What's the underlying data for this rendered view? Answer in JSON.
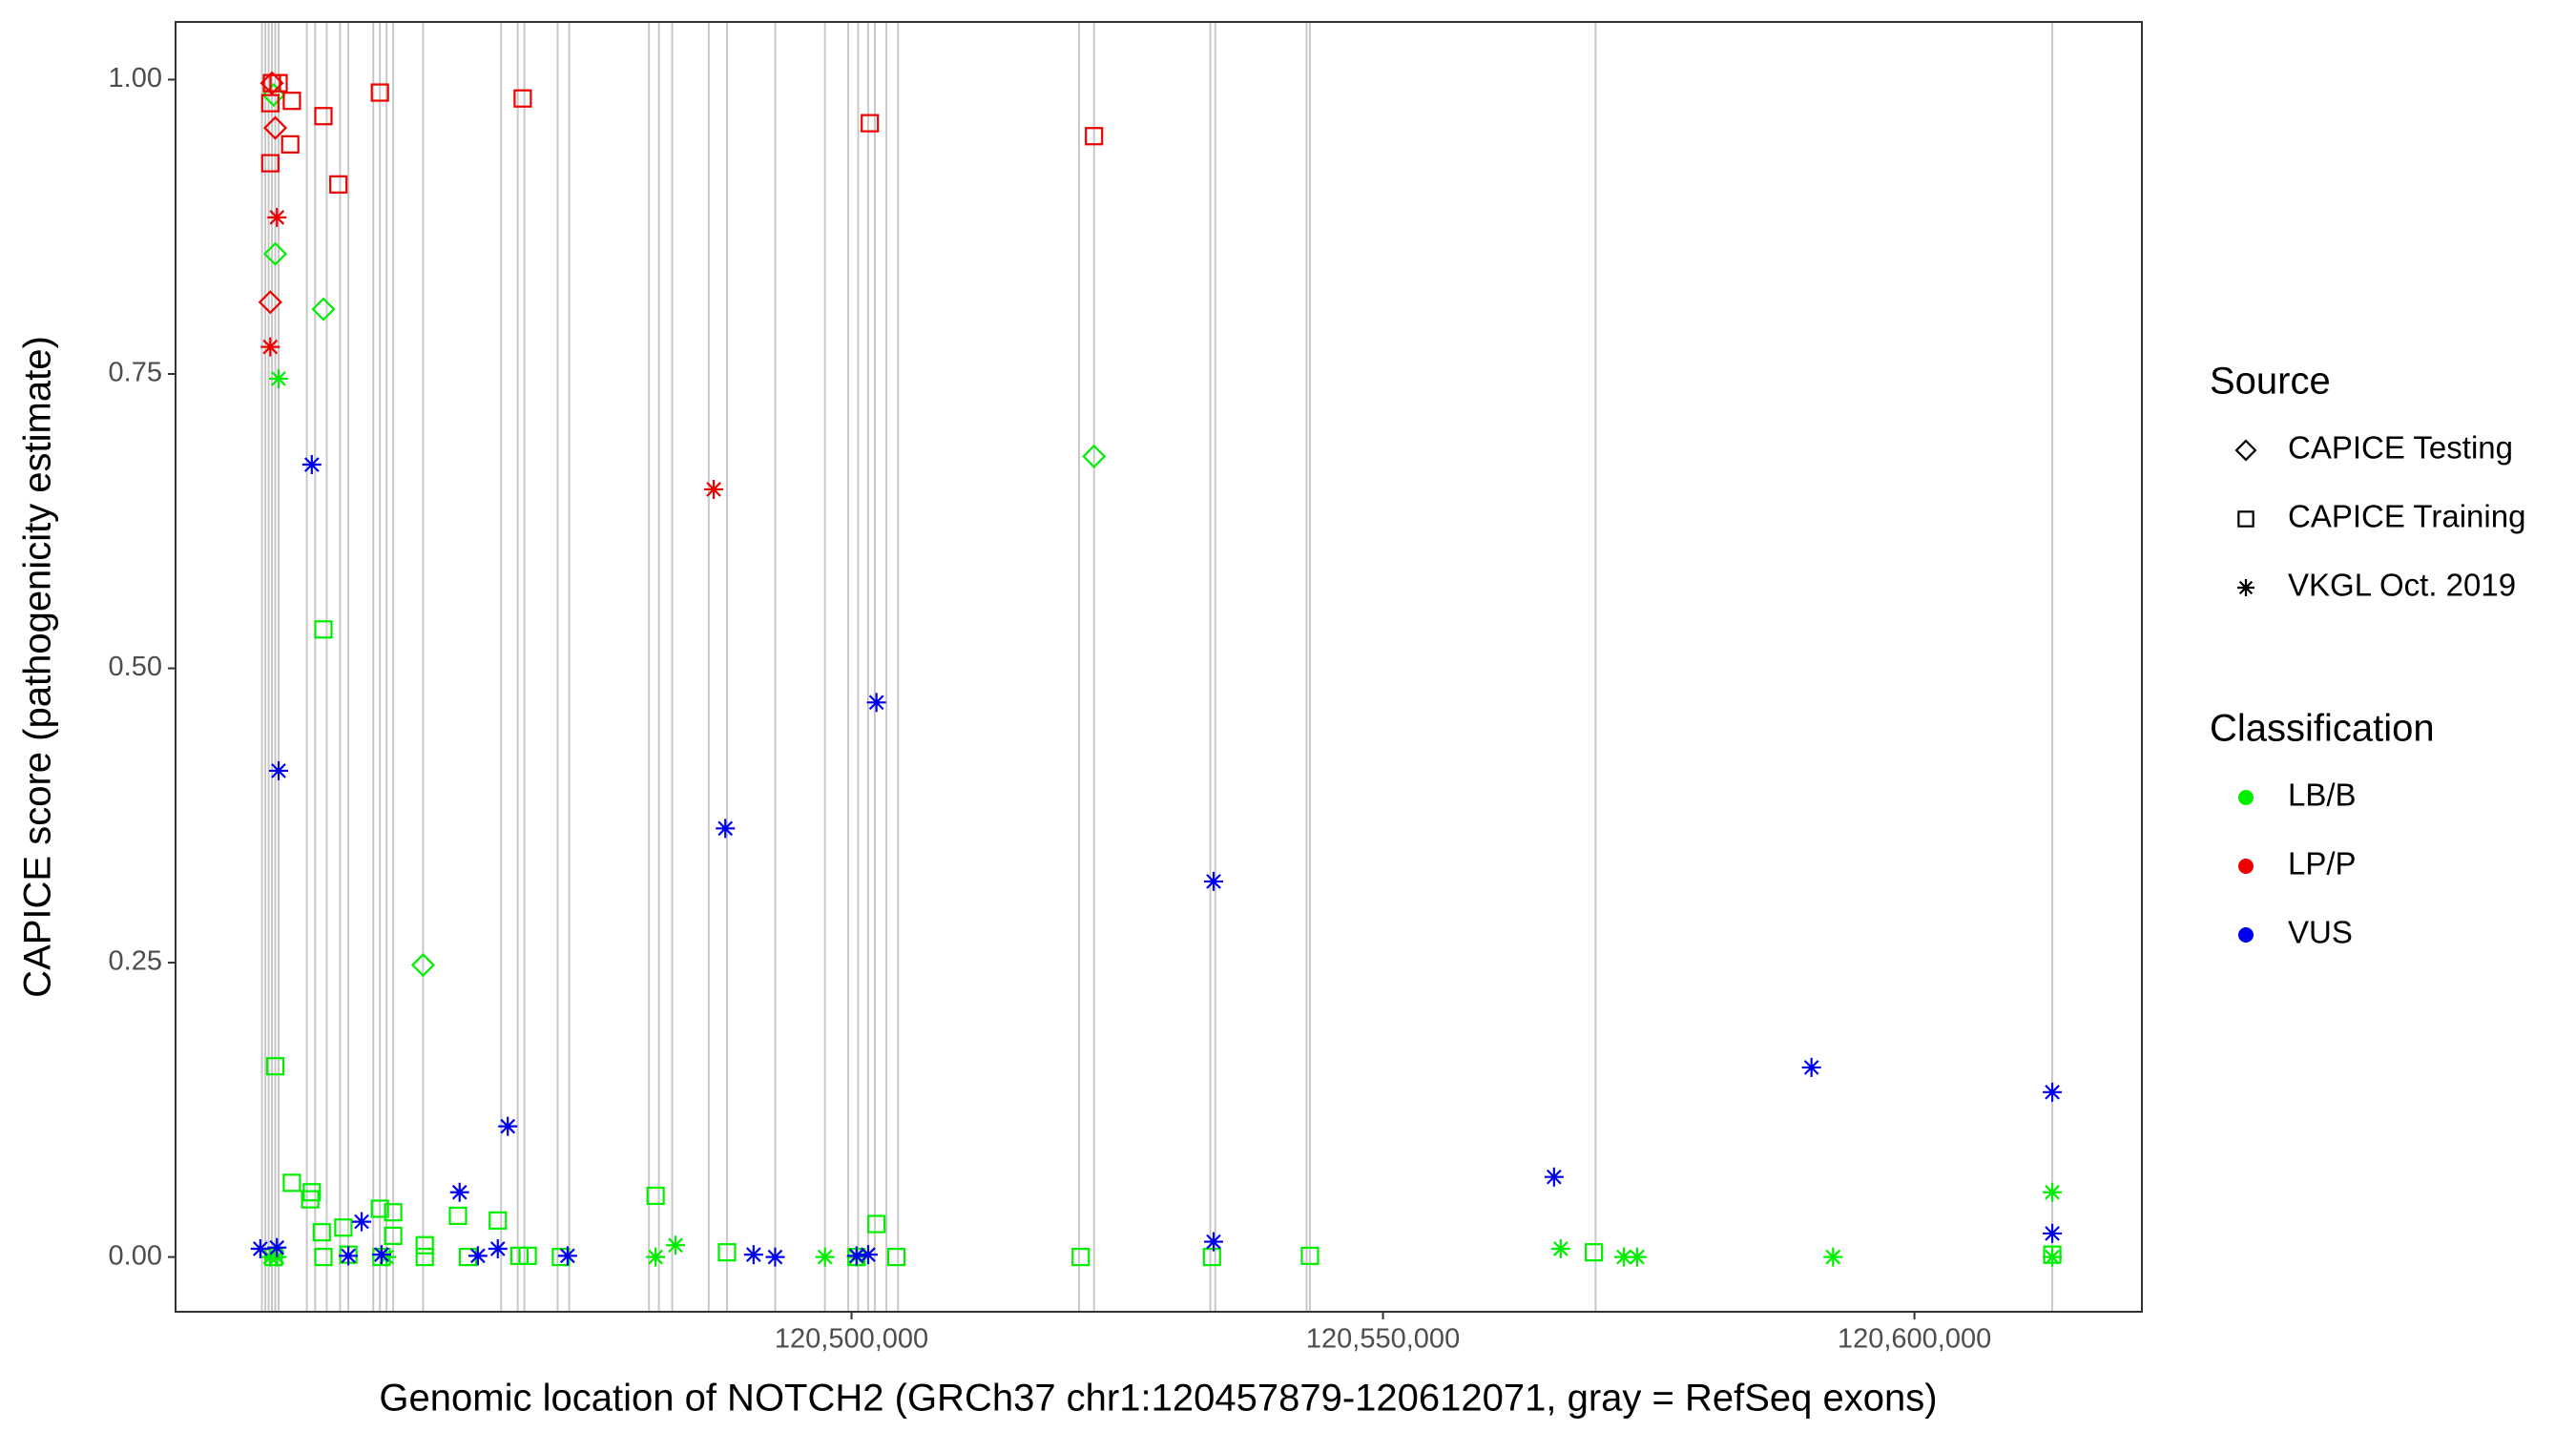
{
  "chart_data": {
    "type": "scatter",
    "x_label": "Genomic location of NOTCH2 (GRCh37 chr1:120457879-120612071, gray = RefSeq exons)",
    "y_label": "CAPICE score (pathogenicity estimate)",
    "xlim": [
      120436400,
      120621400
    ],
    "ylim": [
      -0.0465,
      1.049
    ],
    "xticks": [
      {
        "value": 120500000,
        "label": "120,500,000"
      },
      {
        "value": 120550000,
        "label": "120,550,000"
      },
      {
        "value": 120600000,
        "label": "120,600,000"
      }
    ],
    "yticks": [
      {
        "value": 0,
        "label": "0.00"
      },
      {
        "value": 0.25,
        "label": "0.25"
      },
      {
        "value": 0.5,
        "label": "0.50"
      },
      {
        "value": 0.75,
        "label": "0.75"
      },
      {
        "value": 1,
        "label": "1.00"
      }
    ],
    "exon_color": "#c8c8c8",
    "exons": [
      120444532,
      120444844,
      120445157,
      120445469,
      120445782,
      120446094,
      120448750,
      120449532,
      120450625,
      120451875,
      120452657,
      120455000,
      120455625,
      120456250,
      120456875,
      120459688,
      120467032,
      120468594,
      120469219,
      120472344,
      120473438,
      120480938,
      120481875,
      120483125,
      120486563,
      120488282,
      120492813,
      120497500,
      120499688,
      120500625,
      120501563,
      120502188,
      120503282,
      120504375,
      120521407,
      120522813,
      120533750,
      120534219,
      120542813,
      120543125,
      120570000,
      120612969
    ],
    "shape_legend": {
      "title": "Source",
      "items": [
        {
          "name": "CAPICE Testing",
          "shape": "diamond"
        },
        {
          "name": "CAPICE Training",
          "shape": "square"
        },
        {
          "name": "VKGL Oct. 2019",
          "shape": "asterisk"
        }
      ]
    },
    "color_legend": {
      "title": "Classification",
      "items": [
        {
          "name": "LB/B",
          "color": "#00ee00"
        },
        {
          "name": "LP/P",
          "color": "#ee0000"
        },
        {
          "name": "VUS",
          "color": "#0000ee"
        }
      ]
    },
    "series": [
      {
        "source": "CAPICE Testing",
        "classification": "LB/B",
        "x": [
          120445625,
          120445782,
          120450313,
          120459688,
          120522813
        ],
        "values": [
          0.987,
          0.852,
          0.805,
          0.248,
          0.68
        ]
      },
      {
        "source": "CAPICE Testing",
        "classification": "LP/P",
        "x": [
          120445469,
          120445782,
          120445313
        ],
        "values": [
          0.997,
          0.959,
          0.811
        ]
      },
      {
        "source": "CAPICE Training",
        "classification": "LP/P",
        "x": [
          120445469,
          120446094,
          120445313,
          120447344,
          120445313,
          120447188,
          120450313,
          120451719,
          120455625,
          120469063,
          120501719,
          120522813
        ],
        "values": [
          0.997,
          0.997,
          0.98,
          0.982,
          0.929,
          0.945,
          0.969,
          0.911,
          0.989,
          0.984,
          0.963,
          0.952
        ]
      },
      {
        "source": "CAPICE Training",
        "classification": "LB/B",
        "x": [
          120450313,
          120445782,
          120447344,
          120449219,
          120449063,
          120450157,
          120452188,
          120455625,
          120456875,
          120456875,
          120462969,
          120466719,
          120481563,
          120502344,
          120459844,
          120445625,
          120450313,
          120452657,
          120455782,
          120459844,
          120463907,
          120468750,
          120469532,
          120472657,
          120488282,
          120521563,
          120533907,
          120543125,
          120569844,
          120612969,
          120504219,
          120500469
        ],
        "values": [
          0.533,
          0.162,
          0.063,
          0.055,
          0.049,
          0.021,
          0.025,
          0.041,
          0.038,
          0.018,
          0.035,
          0.031,
          0.052,
          0.028,
          0.01,
          0,
          0,
          0.002,
          0,
          0,
          0,
          0.001,
          0.001,
          0,
          0.004,
          0,
          0,
          0.001,
          0.004,
          0.002,
          0,
          0
        ]
      },
      {
        "source": "VKGL Oct. 2019",
        "classification": "LP/P",
        "x": [
          120445938,
          120445313,
          120487032
        ],
        "values": [
          0.883,
          0.773,
          0.652
        ]
      },
      {
        "source": "VKGL Oct. 2019",
        "classification": "LB/B",
        "x": [
          120446094,
          120612969,
          120483438,
          120566719,
          120445313,
          120445938,
          120481563,
          120497500,
          120500469,
          120572657,
          120573907,
          120592344,
          120612969,
          120456250
        ],
        "values": [
          0.746,
          0.055,
          0.01,
          0.007,
          0,
          0,
          0,
          0,
          0,
          0,
          0,
          0,
          0,
          0
        ]
      },
      {
        "source": "VKGL Oct. 2019",
        "classification": "VUS",
        "x": [
          120449219,
          120446094,
          120502344,
          120488125,
          120534063,
          120590313,
          120612969,
          120566094,
          120467657,
          120463125,
          120453907,
          120612969,
          120534063,
          120466719,
          120444375,
          120445938,
          120452657,
          120455782,
          120464844,
          120473282,
          120490782,
          120492813,
          120500469,
          120501563
        ],
        "values": [
          0.673,
          0.413,
          0.471,
          0.364,
          0.319,
          0.161,
          0.14,
          0.068,
          0.111,
          0.055,
          0.03,
          0.02,
          0.013,
          0.007,
          0.007,
          0.008,
          0.001,
          0.002,
          0.001,
          0.001,
          0.002,
          0,
          0.001,
          0.002
        ]
      }
    ]
  }
}
